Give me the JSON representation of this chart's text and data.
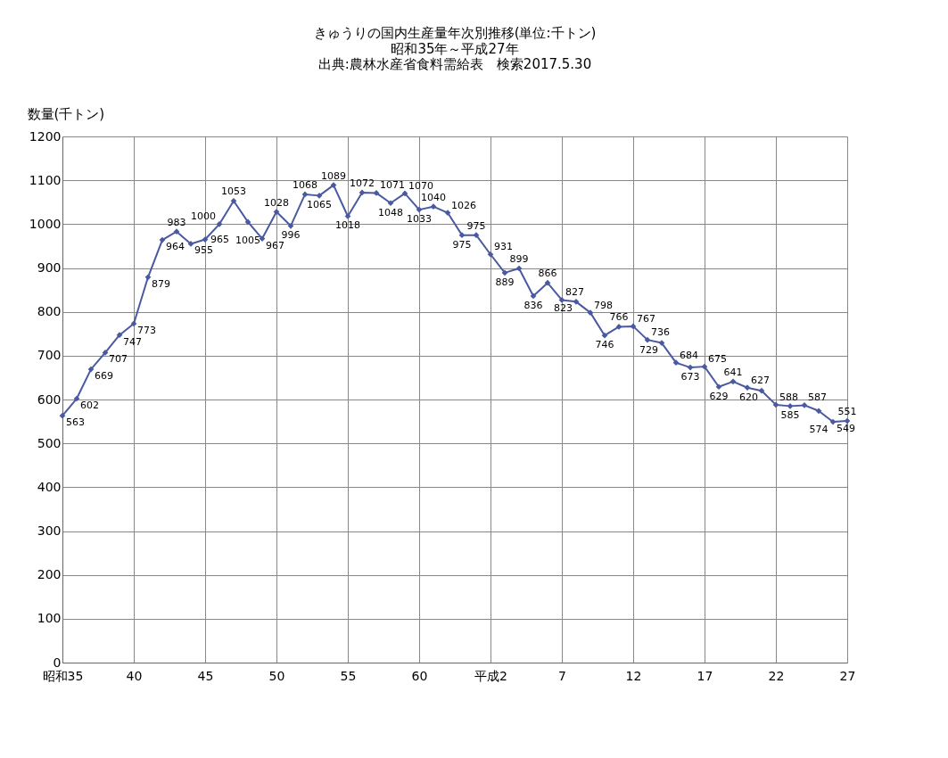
{
  "chart_data": {
    "type": "line",
    "title": "きゅうりの国内生産量年次別推移(単位:千トン)",
    "subtitle": "昭和35年～平成27年",
    "annotations": [
      "出典:農林水産省食料需給表　検索2017.5.30"
    ],
    "ylabel": "数量(千トン)",
    "categories": [
      "昭和35",
      null,
      null,
      null,
      null,
      "40",
      null,
      null,
      null,
      null,
      "45",
      null,
      null,
      null,
      null,
      "50",
      null,
      null,
      null,
      null,
      "55",
      null,
      null,
      null,
      null,
      "60",
      null,
      null,
      null,
      null,
      "平成2",
      null,
      null,
      null,
      null,
      "7",
      null,
      null,
      null,
      null,
      "12",
      null,
      null,
      null,
      null,
      "17",
      null,
      null,
      null,
      null,
      "22",
      null,
      null,
      null,
      null,
      "27"
    ],
    "series": [
      {
        "color": "#4a5aa0",
        "values": [
          563,
          602,
          669,
          707,
          747,
          773,
          879,
          964,
          983,
          955,
          965,
          1000,
          1053,
          1005,
          967,
          1028,
          996,
          1068,
          1065,
          1089,
          1018,
          1072,
          1071,
          1048,
          1070,
          1033,
          1040,
          1026,
          975,
          975,
          931,
          889,
          899,
          836,
          866,
          827,
          823,
          798,
          746,
          766,
          767,
          736,
          729,
          684,
          673,
          675,
          629,
          641,
          627,
          620,
          588,
          585,
          587,
          574,
          549,
          551
        ]
      }
    ],
    "ylim": [
      0,
      1200
    ],
    "yticks": [
      0,
      100,
      200,
      300,
      400,
      500,
      600,
      700,
      800,
      900,
      1000,
      1100,
      1200
    ],
    "grid": true,
    "legend": false,
    "marker": "diamond",
    "line_style": "solid",
    "data_labels": true
  }
}
